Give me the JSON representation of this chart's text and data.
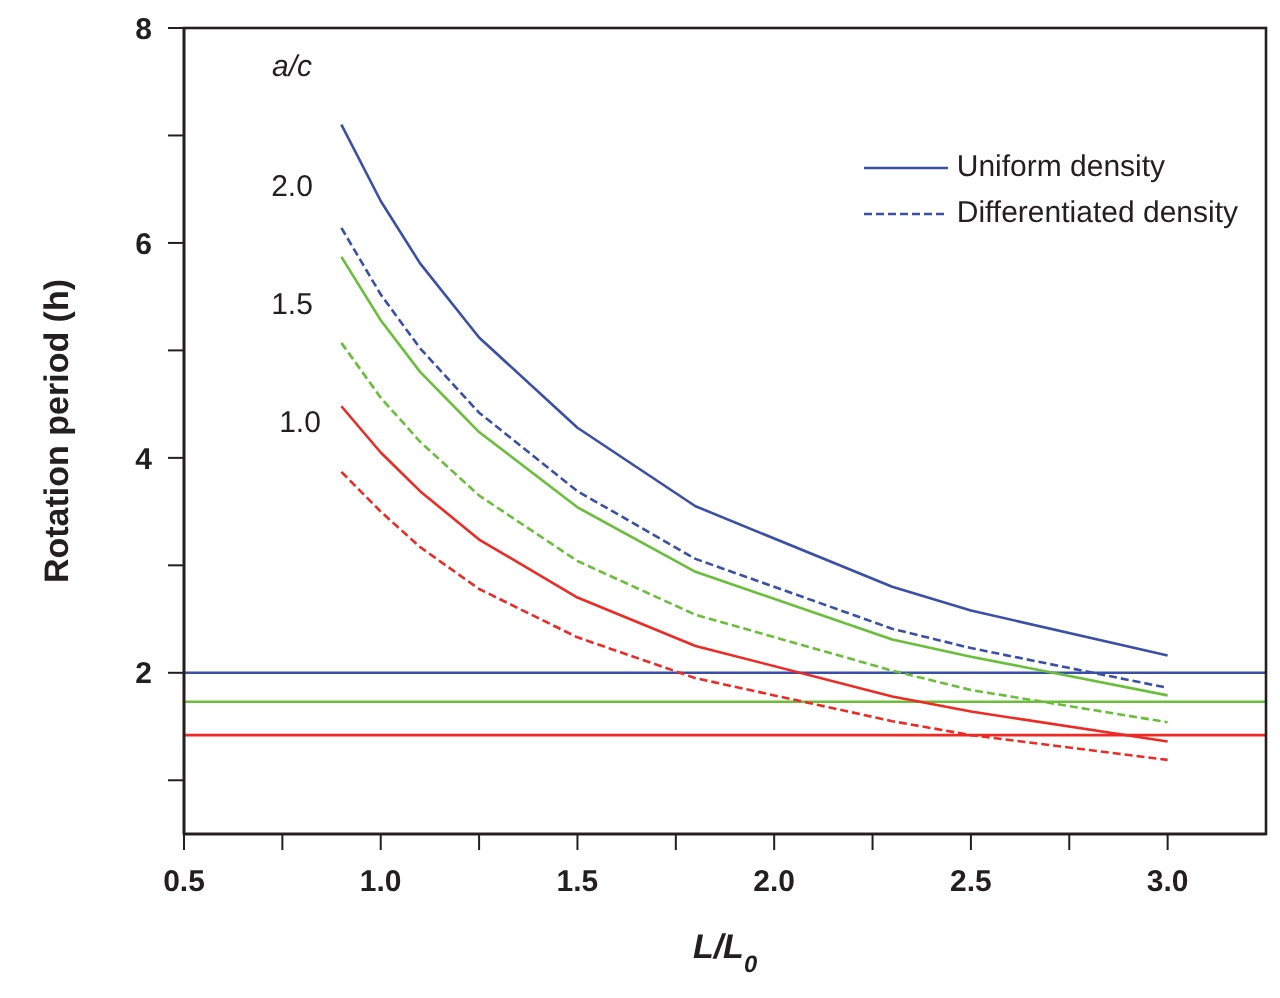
{
  "chart_data": {
    "type": "line",
    "xlabel": "L/L$_{0}$",
    "ylabel": "Rotation period (h)",
    "xlim": [
      0.5,
      3.25
    ],
    "xticks": [
      0.5,
      {
        "value": 0.75,
        "label": null
      },
      {
        "value": 1,
        "label": "1.0"
      },
      {
        "value": 1.25,
        "label": null
      },
      1.5,
      {
        "value": 1.75,
        "label": null
      },
      {
        "value": 2,
        "label": "2.0"
      },
      {
        "value": 2.25,
        "label": null
      },
      2.5,
      {
        "value": 2.75,
        "label": null
      },
      {
        "value": 3,
        "label": "3.0"
      }
    ],
    "ylim": [
      0.5,
      8
    ],
    "yticks": [
      {
        "value": 1,
        "label": null
      },
      2,
      {
        "value": 3,
        "label": null
      },
      4,
      {
        "value": 5,
        "label": null
      },
      6,
      {
        "value": 7,
        "label": null
      },
      8
    ],
    "x": [
      0.9,
      1.0,
      1.1,
      1.25,
      1.5,
      1.8,
      2.3,
      2.5,
      3.0
    ],
    "series": [
      {
        "name": "Uniform density",
        "color": "#3a4fa8",
        "line_style": "solid",
        "values": [
          7.1,
          6.39,
          5.81,
          5.12,
          4.28,
          3.55,
          2.8,
          2.58,
          2.16
        ]
      },
      {
        "name": "Differentiated density",
        "color": "#3a4fa8",
        "line_style": "dashed",
        "values": [
          6.14,
          5.52,
          5.02,
          4.42,
          3.69,
          3.06,
          2.41,
          2.23,
          1.86
        ]
      },
      {
        "color": "#6abf3a",
        "line_style": "solid",
        "values": [
          5.87,
          5.28,
          4.8,
          4.24,
          3.54,
          2.94,
          2.31,
          2.15,
          1.79
        ]
      },
      {
        "color": "#6abf3a",
        "line_style": "dashed",
        "values": [
          5.07,
          4.56,
          4.15,
          3.65,
          3.04,
          2.54,
          2.02,
          1.84,
          1.54
        ]
      },
      {
        "color": "#ee2a24",
        "line_style": "solid",
        "values": [
          4.48,
          4.05,
          3.69,
          3.24,
          2.7,
          2.25,
          1.78,
          1.64,
          1.36
        ]
      },
      {
        "color": "#ee2a24",
        "line_style": "dashed",
        "values": [
          3.87,
          3.5,
          3.17,
          2.78,
          2.33,
          1.95,
          1.55,
          1.42,
          1.19
        ]
      }
    ],
    "ref_lines": [
      {
        "axis": "y",
        "value": 2.0,
        "color": "#3a4fa8"
      },
      {
        "axis": "y",
        "value": 1.73,
        "color": "#6abf3a"
      },
      {
        "axis": "y",
        "value": 1.42,
        "color": "#ee2a24"
      }
    ],
    "annotations": [
      "a/c",
      "2.0",
      "1.5",
      "1.0"
    ],
    "legend": "top right",
    "marker": "none"
  }
}
